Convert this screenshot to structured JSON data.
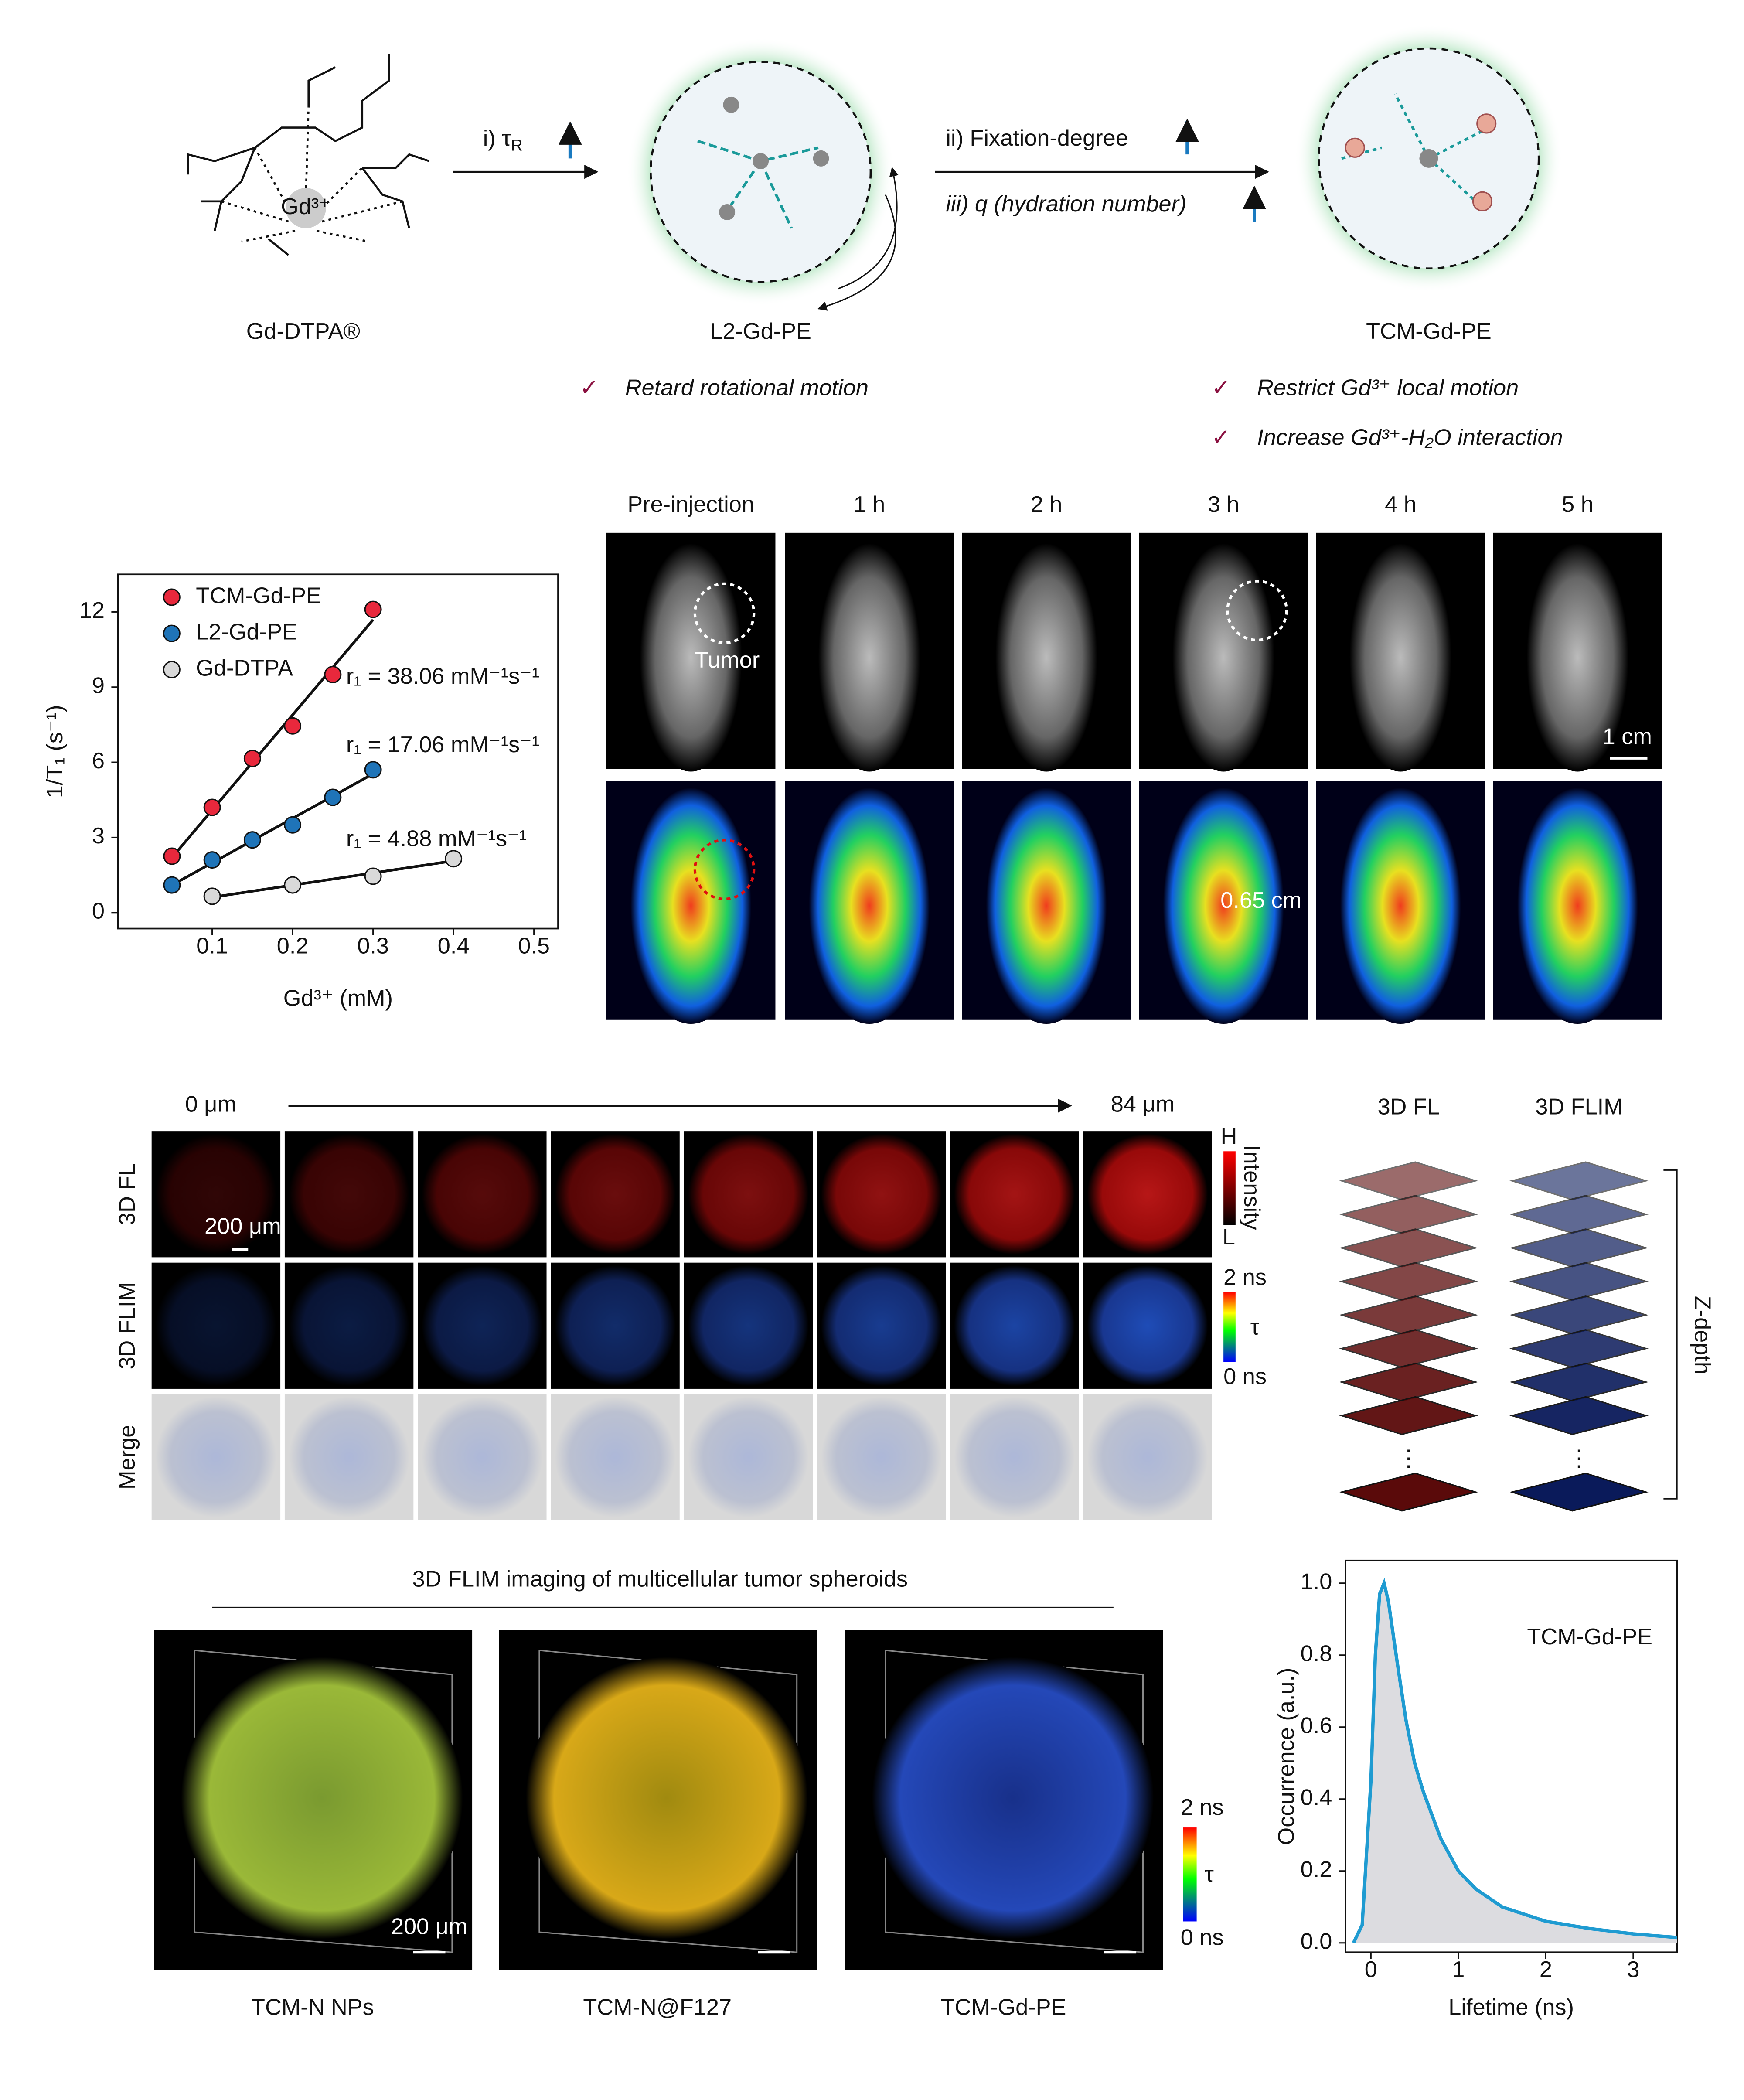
{
  "schematic": {
    "labels": [
      "Gd-DTPA®",
      "L2-Gd-PE",
      "TCM-Gd-PE"
    ],
    "ion": "Gd³⁺",
    "step1": "i) τ",
    "step1_sub": "R",
    "step2": "ii) Fixation-degree",
    "step3": "iii) q (hydration number)",
    "checks": [
      "Retard rotational motion",
      "Restrict Gd³⁺ local motion",
      "Increase Gd³⁺-H₂O interaction"
    ]
  },
  "chart_data": [
    {
      "type": "scatter",
      "xlabel": "Gd³⁺ (mM)",
      "ylabel": "1/T₁ (s⁻¹)",
      "xlim": [
        -0.017,
        0.53
      ],
      "ylim": [
        -0.64,
        13.5
      ],
      "xticks": [
        0.1,
        0.2,
        0.3,
        0.4,
        0.5
      ],
      "yticks": [
        0,
        3,
        6,
        9,
        12
      ],
      "legend": "upper left",
      "fit": "linear",
      "series": [
        {
          "name": "TCM-Gd-PE",
          "color": "#e8283c",
          "x": [
            0.05,
            0.1,
            0.15,
            0.2,
            0.25,
            0.3
          ],
          "values": [
            2.25,
            4.2,
            6.15,
            7.45,
            9.5,
            12.1
          ]
        },
        {
          "name": "L2-Gd-PE",
          "color": "#1f74b8",
          "x": [
            0.05,
            0.1,
            0.15,
            0.2,
            0.25,
            0.3
          ],
          "values": [
            1.1,
            2.1,
            2.9,
            3.5,
            4.6,
            5.7
          ]
        },
        {
          "name": "Gd-DTPA",
          "color": "#d9d9d9",
          "x": [
            0.1,
            0.2,
            0.3,
            0.4
          ],
          "values": [
            0.65,
            1.1,
            1.45,
            2.15
          ]
        }
      ],
      "annotations": [
        "r₁ = 38.06 mM⁻¹s⁻¹",
        "r₁ = 17.06 mM⁻¹s⁻¹",
        "r₁ = 4.88 mM⁻¹s⁻¹"
      ]
    },
    {
      "type": "area",
      "annotation": "TCM-Gd-PE",
      "xlabel": "Lifetime (ns)",
      "ylabel": "Occurrence (a.u.)",
      "x": [
        -0.2,
        -0.1,
        0,
        0.05,
        0.1,
        0.15,
        0.2,
        0.3,
        0.4,
        0.5,
        0.6,
        0.8,
        1.0,
        1.2,
        1.5,
        2.0,
        2.5,
        3.0,
        3.5
      ],
      "values": [
        0,
        0.05,
        0.45,
        0.8,
        0.97,
        1.0,
        0.95,
        0.78,
        0.62,
        0.5,
        0.42,
        0.29,
        0.2,
        0.15,
        0.1,
        0.06,
        0.04,
        0.025,
        0.015
      ],
      "color": "#1f9bd1",
      "fill": "#dcdce0",
      "xlim": [
        -0.29,
        3.5
      ],
      "ylim": [
        -0.026,
        1.063
      ],
      "xticks": [
        0,
        1,
        2,
        3
      ],
      "yticks": [
        {
          "value": 0,
          "label": "0.0"
        },
        {
          "value": 0.2,
          "label": "0.2"
        },
        {
          "value": 0.4,
          "label": "0.4"
        },
        {
          "value": 0.6,
          "label": "0.6"
        },
        {
          "value": 0.8,
          "label": "0.8"
        },
        {
          "value": 1,
          "label": "1.0"
        }
      ]
    }
  ],
  "mri": {
    "times": [
      "Pre-injection",
      "1 h",
      "2 h",
      "3 h",
      "4 h",
      "5 h"
    ],
    "tumor": "Tumor",
    "scale": "1 cm",
    "distance": "0.65 cm"
  },
  "zstack": {
    "start": "0 μm",
    "end": "84 μm",
    "rows": [
      "3D FL",
      "3D FLIM",
      "Merge"
    ],
    "scale": "200 μm",
    "intensity_bar": {
      "high": "H",
      "title": "Intensity",
      "low": "L"
    },
    "lifetime_bar": {
      "high": "2 ns",
      "title": "τ",
      "low": "0 ns"
    },
    "stack_titles": [
      "3D FL",
      "3D FLIM"
    ],
    "ellipsis": "⋮",
    "depth": "Z-depth"
  },
  "spheroids": {
    "title": "3D FLIM imaging of multicellular tumor spheroids",
    "samples": [
      "TCM-N NPs",
      "TCM-N@F127",
      "TCM-Gd-PE"
    ],
    "scale": "200 μm",
    "lifetime_bar": {
      "high": "2 ns",
      "title": "τ",
      "low": "0 ns"
    }
  }
}
